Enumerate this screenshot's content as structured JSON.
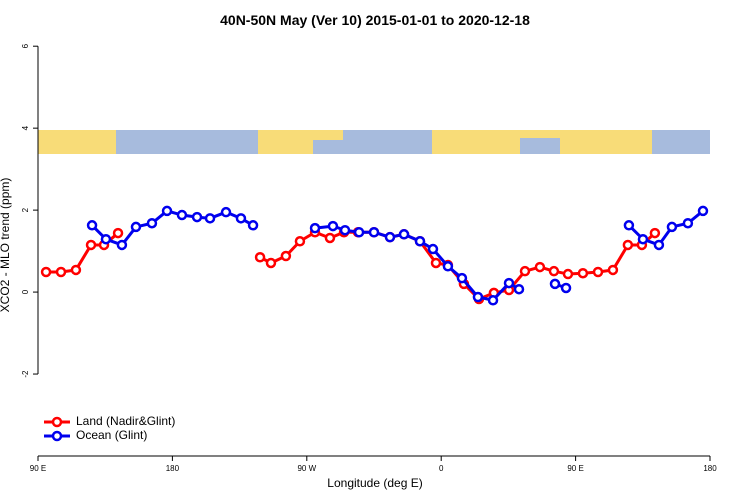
{
  "chart_data": {
    "type": "line",
    "title": "40N-50N May (Ver 10)   2015-01-01 to 2020-12-18",
    "xlabel": "Longitude (deg E)",
    "ylabel": "XCO2 - MLO trend (ppm)",
    "xlim": [
      90,
      540
    ],
    "ylim": [
      -4,
      6.2
    ],
    "xticks": [
      {
        "value": 90,
        "label": "90 E"
      },
      180,
      {
        "value": 270,
        "label": "90 W"
      },
      {
        "value": 360,
        "label": "0"
      },
      {
        "value": 450,
        "label": "90 E"
      },
      {
        "value": 540,
        "label": "180"
      }
    ],
    "yticks": [
      -2,
      0,
      2,
      4,
      6
    ],
    "legend": "bottom-left",
    "series": [
      {
        "name": "Land (Nadir&Glint)",
        "color": "#ff0000",
        "x": [
          95.4,
          105.4,
          115.4,
          125.5,
          134.2,
          143.6,
          190,
          238.7,
          246,
          256,
          265.4,
          275.5,
          285.5,
          294.9,
          304.3,
          315,
          325.7,
          335.1,
          345.8,
          356.5,
          364.5,
          375.2,
          385.3,
          395.3,
          405.4,
          416.1,
          426.1,
          435.5,
          444.9,
          454.9,
          465,
          475,
          485,
          494.4,
          503.1
        ],
        "values": [
          0.49,
          0.49,
          0.54,
          1.15,
          1.15,
          1.44,
          null,
          0.85,
          0.71,
          0.88,
          1.24,
          1.46,
          1.32,
          1.46,
          1.46,
          1.46,
          1.34,
          1.41,
          1.24,
          0.71,
          0.66,
          0.2,
          -0.17,
          -0.02,
          0.05,
          0.51,
          0.61,
          0.51,
          0.44,
          0.46,
          0.49,
          0.54,
          1.15,
          1.15,
          1.44
        ]
      },
      {
        "name": "Ocean (Glint)",
        "color": "#0000ee",
        "x": [
          126.2,
          135.5,
          146.2,
          155.6,
          166.3,
          176.4,
          186.4,
          196.5,
          205.2,
          215.9,
          225.9,
          234,
          255,
          275.5,
          287.5,
          295.6,
          305,
          315,
          325.7,
          335.1,
          345.8,
          354.5,
          364.5,
          373.9,
          384.6,
          394.7,
          405.4,
          412.1,
          425,
          436.2,
          443.6,
          465,
          485.7,
          495.1,
          505.8,
          514.5,
          525.2,
          535.3
        ],
        "values": [
          1.63,
          1.29,
          1.15,
          1.59,
          1.68,
          1.98,
          1.88,
          1.83,
          1.8,
          1.95,
          1.8,
          1.63,
          null,
          1.56,
          1.61,
          1.51,
          1.46,
          1.46,
          1.34,
          1.41,
          1.24,
          1.05,
          0.63,
          0.34,
          -0.12,
          -0.2,
          0.22,
          0.07,
          null,
          0.2,
          0.1,
          null,
          1.63,
          1.29,
          1.15,
          1.59,
          1.68,
          1.98
        ]
      }
    ]
  }
}
